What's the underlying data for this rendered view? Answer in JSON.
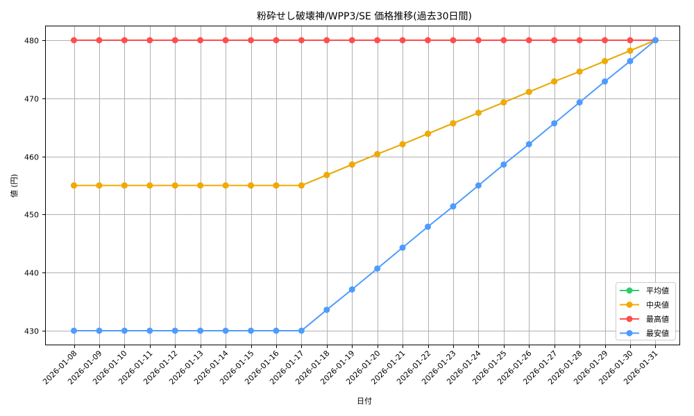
{
  "chart_data": {
    "type": "line",
    "title": "粉砕せし破壊神/WPP3/SE 価格推移(過去30日間)",
    "xlabel": "日付",
    "ylabel": "値 (円)",
    "ylim": [
      427.5,
      482.6
    ],
    "yticks": [
      430,
      440,
      450,
      460,
      470,
      480
    ],
    "grid": true,
    "legend_position": "lower right",
    "x": [
      "2026-01-08",
      "2026-01-09",
      "2026-01-10",
      "2026-01-11",
      "2026-01-12",
      "2026-01-13",
      "2026-01-14",
      "2026-01-15",
      "2026-01-16",
      "2026-01-17",
      "2026-01-18",
      "2026-01-19",
      "2026-01-20",
      "2026-01-21",
      "2026-01-22",
      "2026-01-23",
      "2026-01-24",
      "2026-01-25",
      "2026-01-26",
      "2026-01-27",
      "2026-01-28",
      "2026-01-29",
      "2026-01-30",
      "2026-01-31"
    ],
    "series": [
      {
        "name": "平均値",
        "color": "#2ecc71",
        "values": [
          455,
          455,
          455,
          455,
          455,
          455,
          455,
          455,
          455,
          455,
          456.8,
          458.6,
          460.4,
          462.1,
          463.9,
          465.7,
          467.5,
          469.3,
          471.1,
          472.9,
          474.6,
          476.4,
          478.2,
          480
        ]
      },
      {
        "name": "中央値",
        "color": "#f5a800",
        "values": [
          455,
          455,
          455,
          455,
          455,
          455,
          455,
          455,
          455,
          455,
          456.8,
          458.6,
          460.4,
          462.1,
          463.9,
          465.7,
          467.5,
          469.3,
          471.1,
          472.9,
          474.6,
          476.4,
          478.2,
          480
        ]
      },
      {
        "name": "最高値",
        "color": "#ff4d4d",
        "values": [
          480,
          480,
          480,
          480,
          480,
          480,
          480,
          480,
          480,
          480,
          480,
          480,
          480,
          480,
          480,
          480,
          480,
          480,
          480,
          480,
          480,
          480,
          480,
          480
        ]
      },
      {
        "name": "最安値",
        "color": "#4d9bff",
        "values": [
          430,
          430,
          430,
          430,
          430,
          430,
          430,
          430,
          430,
          430,
          433.6,
          437.1,
          440.7,
          444.3,
          447.9,
          451.4,
          455,
          458.6,
          462.1,
          465.7,
          469.3,
          472.9,
          476.4,
          480
        ]
      }
    ]
  }
}
